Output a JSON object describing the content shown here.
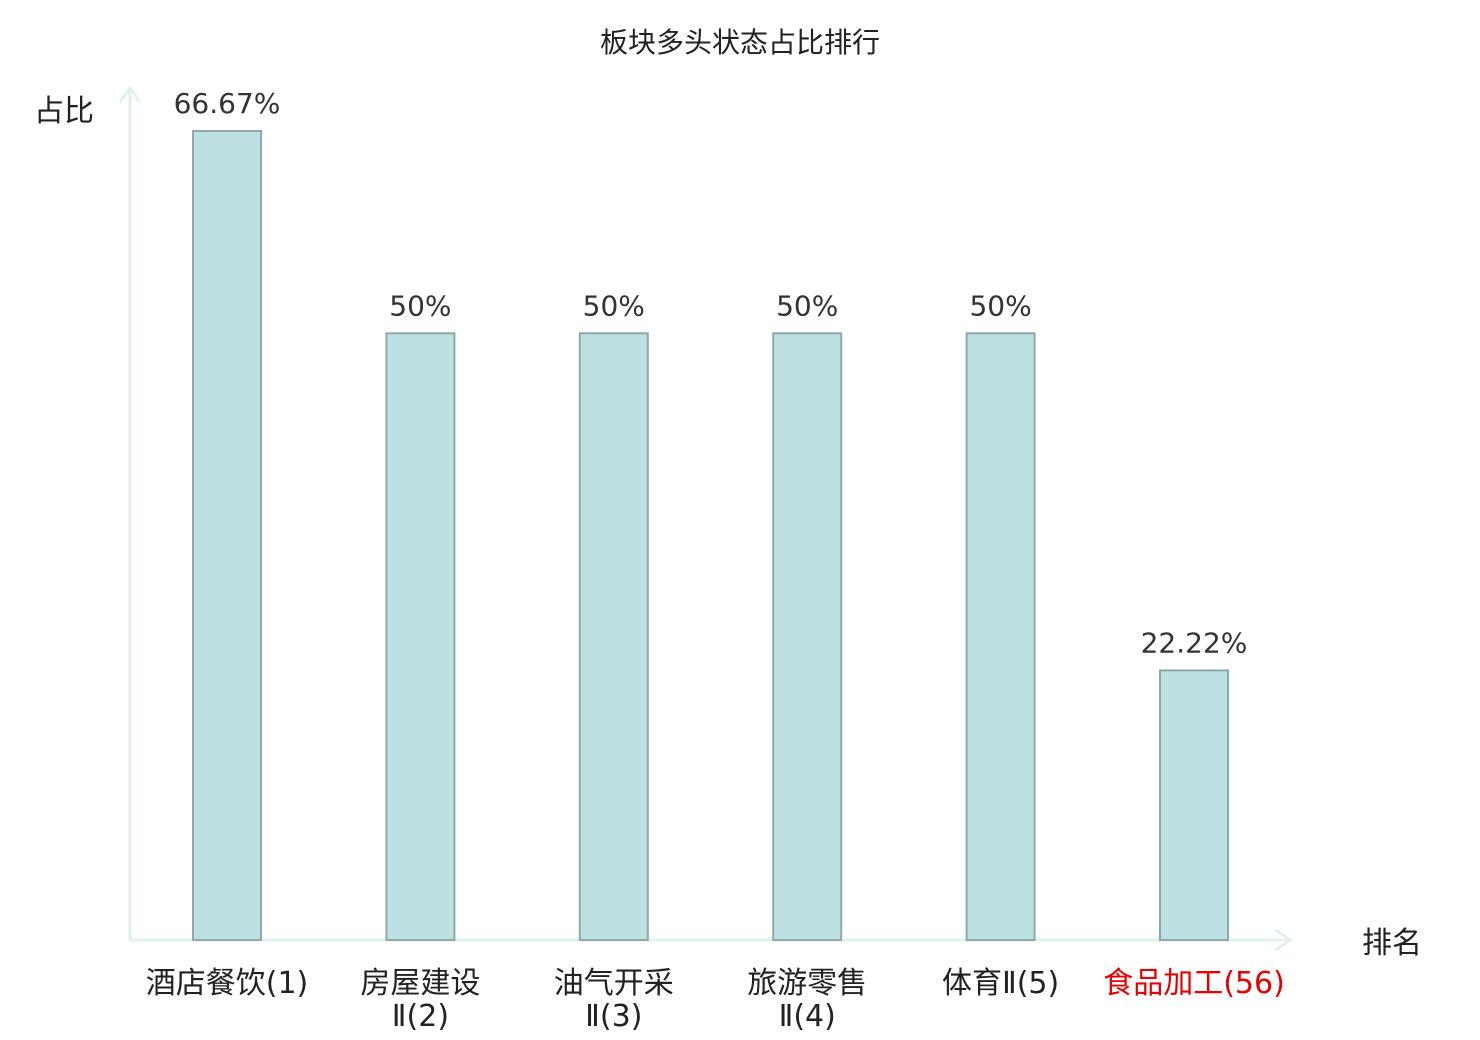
{
  "chart_data": {
    "type": "bar",
    "title": "板块多头状态占比排行",
    "ylabel": "占比",
    "xlabel": "排名",
    "ylim": [
      0,
      66.67
    ],
    "grid": false,
    "legend": "none",
    "categories": [
      {
        "name": "酒店餐饮",
        "rank": "(1)",
        "name_lines": [
          "酒店餐饮(1)"
        ]
      },
      {
        "name": "房屋建设Ⅱ",
        "rank": "(2)",
        "name_lines": [
          "房屋建设",
          "Ⅱ(2)"
        ]
      },
      {
        "name": "油气开采Ⅱ",
        "rank": "(3)",
        "name_lines": [
          "油气开采",
          "Ⅱ(3)"
        ]
      },
      {
        "name": "旅游零售Ⅱ",
        "rank": "(4)",
        "name_lines": [
          "旅游零售",
          "Ⅱ(4)"
        ]
      },
      {
        "name": "体育Ⅱ",
        "rank": "(5)",
        "name_lines": [
          "体育Ⅱ(5)"
        ]
      },
      {
        "name": "食品加工",
        "rank": "(56)",
        "name_lines": [
          "食品加工(56)"
        ],
        "highlight": true
      }
    ],
    "values": [
      66.67,
      50,
      50,
      50,
      50,
      22.22
    ],
    "value_labels": [
      "66.67%",
      "50%",
      "50%",
      "50%",
      "50%",
      "22.22%"
    ]
  },
  "colors": {
    "bar_fill": "#bde0e3",
    "bar_stroke": "#8fa9ab",
    "axis": "#e0f2ef",
    "highlight": "#e60000",
    "text": "#222222"
  }
}
